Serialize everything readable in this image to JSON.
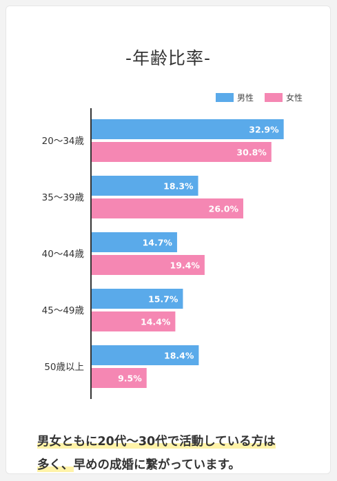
{
  "chart_data": {
    "type": "bar",
    "orientation": "horizontal",
    "title": "-年齢比率-",
    "categories": [
      "20〜34歳",
      "35〜39歳",
      "40〜44歳",
      "45〜49歳",
      "50歳以上"
    ],
    "series": [
      {
        "name": "男性",
        "color": "#5aaaea",
        "values": [
          32.9,
          18.3,
          14.7,
          15.7,
          18.4
        ],
        "labels": [
          "32.9%",
          "18.3%",
          "14.7%",
          "15.7%",
          "18.4%"
        ]
      },
      {
        "name": "女性",
        "color": "#f587b3",
        "values": [
          30.8,
          26.0,
          19.4,
          14.4,
          9.5
        ],
        "labels": [
          "30.8%",
          "26.0%",
          "19.4%",
          "14.4%",
          "9.5%"
        ]
      }
    ],
    "xlim": [
      0,
      40
    ],
    "legend_position": "top-right",
    "grid": false
  },
  "footer": {
    "line1": "男女ともに20代〜30代で活動している方は",
    "line2_highlight": "多く、",
    "line2_rest": "早めの成婚に繋がっています。"
  }
}
